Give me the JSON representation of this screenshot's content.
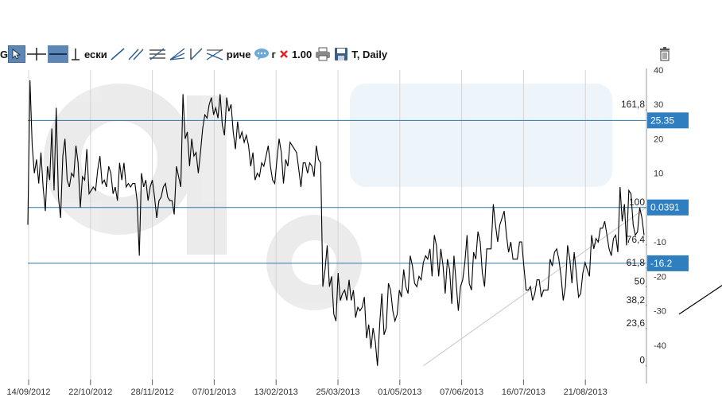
{
  "toolbar": {
    "first_label": "G",
    "text_tool_label": "ески",
    "text_tool2_label": "риче",
    "text_tool3_label": "г",
    "scale_label": "1.00",
    "period_label": "T, Daily",
    "icons": [
      "cursor-icon",
      "crosshair-icon",
      "horizontal-line-icon",
      "vertical-line-icon",
      "trendline-icon",
      "channel-icon",
      "fibonacci-icon",
      "fan-icon",
      "pitchfork-icon",
      "speech-bubble-icon",
      "delete-icon",
      "print-icon",
      "save-icon",
      "trash-icon"
    ]
  },
  "chart_data": {
    "type": "line",
    "y_axis": {
      "min": -50,
      "max": 40,
      "ticks": [
        40,
        30,
        20,
        10,
        -10,
        -20,
        -30,
        -40
      ]
    },
    "x_labels": [
      "14/09/2012",
      "22/10/2012",
      "28/11/2012",
      "07/01/2013",
      "13/02/2013",
      "25/03/2013",
      "01/05/2013",
      "07/06/2013",
      "16/07/2013",
      "21/08/2013"
    ],
    "series": [
      {
        "values": [
          -5,
          37,
          18,
          10,
          14,
          7,
          16,
          6,
          -1,
          12,
          8,
          23,
          5,
          29,
          3,
          -3,
          15,
          20,
          8,
          6,
          10,
          9,
          18,
          13,
          0,
          9,
          8,
          17,
          4,
          5,
          6,
          5,
          11,
          15,
          7,
          8,
          6,
          12,
          10,
          4,
          6,
          2,
          13,
          8,
          13,
          6,
          7,
          6,
          7,
          7,
          2,
          -14,
          10,
          6,
          8,
          2,
          6,
          8,
          3,
          -3,
          2,
          3,
          6,
          7,
          3,
          2,
          2,
          -2,
          12,
          9,
          6,
          33,
          20,
          22,
          12,
          20,
          15,
          16,
          10,
          16,
          23,
          27,
          26,
          30,
          32,
          27,
          29,
          26,
          33,
          24,
          21,
          32,
          28,
          30,
          22,
          17,
          25,
          20,
          22,
          19,
          21,
          18,
          12,
          16,
          8,
          10,
          9,
          13,
          12,
          15,
          18,
          12,
          8,
          7,
          14,
          20,
          16,
          7,
          14,
          12,
          19,
          18,
          17,
          16,
          11,
          6,
          13,
          13,
          10,
          13,
          12,
          9,
          18,
          14,
          13,
          -23,
          -18,
          -11,
          -23,
          -20,
          -31,
          -33,
          -19,
          -27,
          -25,
          -24,
          -27,
          -21,
          -27,
          -24,
          -32,
          -29,
          -30,
          -29,
          -26,
          -38,
          -34,
          -41,
          -35,
          -39,
          -46,
          -34,
          -25,
          -37,
          -35,
          -22,
          -24,
          -30,
          -33,
          -31,
          -24,
          -26,
          -18,
          -23,
          -25,
          -14,
          -17,
          -22,
          -23,
          -20,
          -21,
          -16,
          -14,
          -15,
          -12,
          -20,
          -8,
          -11,
          -20,
          -12,
          -17,
          -25,
          -15,
          -18,
          -28,
          -14,
          -22,
          -30,
          -23,
          -21,
          -16,
          -8,
          -22,
          -24,
          -13,
          -15,
          -7,
          -10,
          -19,
          -23,
          -12,
          -12,
          -12,
          1,
          -5,
          -10,
          -5,
          -3,
          -1,
          -8,
          -13,
          -10,
          -15,
          -15,
          -15,
          -10,
          -10,
          -17,
          -24,
          -24,
          -23,
          -27,
          -25,
          -21,
          -21,
          -26,
          -24,
          -24,
          -24,
          -15,
          -17,
          -13,
          -12,
          -15,
          -20,
          -27,
          -23,
          -11,
          -15,
          -22,
          -13,
          -19,
          -26,
          -25,
          -19,
          -16,
          -18,
          -20,
          -8,
          -12,
          -9,
          -10,
          -6,
          -6,
          -4,
          -8,
          -12,
          -14,
          -9,
          -8,
          -13,
          6,
          -4,
          1,
          -11,
          5,
          4,
          -5,
          -8,
          -7,
          0,
          -3,
          -8
        ]
      }
    ],
    "horizontal_lines": [
      {
        "label": "25.35",
        "value": 25.35
      },
      {
        "label": "0.0391",
        "value": 0.0391
      },
      {
        "label": "-16.2",
        "value": -16.2
      }
    ],
    "fibonacci": {
      "from": {
        "x_index": 181,
        "value": -46
      },
      "to": {
        "x_index": 283,
        "value": 0
      },
      "levels": [
        {
          "label": "161,8",
          "ratio": 1.618
        },
        {
          "label": "100",
          "ratio": 1.0
        },
        {
          "label": "76,4",
          "ratio": 0.764
        },
        {
          "label": "61,8",
          "ratio": 0.618
        },
        {
          "label": "50",
          "ratio": 0.5
        },
        {
          "label": "38,2",
          "ratio": 0.382
        },
        {
          "label": "23,6",
          "ratio": 0.236
        },
        {
          "label": "0",
          "ratio": 0.0
        }
      ]
    },
    "trendline": {
      "from": {
        "x_index": 298,
        "value": -31
      },
      "to": {
        "x_index": 338,
        "value": -14
      }
    }
  },
  "colors": {
    "price": "#000000",
    "hline": "#2f78a8",
    "badge": "#2f7fc0",
    "fib_diag": "#c8c8c8",
    "grid_axis": "#cccccc"
  }
}
